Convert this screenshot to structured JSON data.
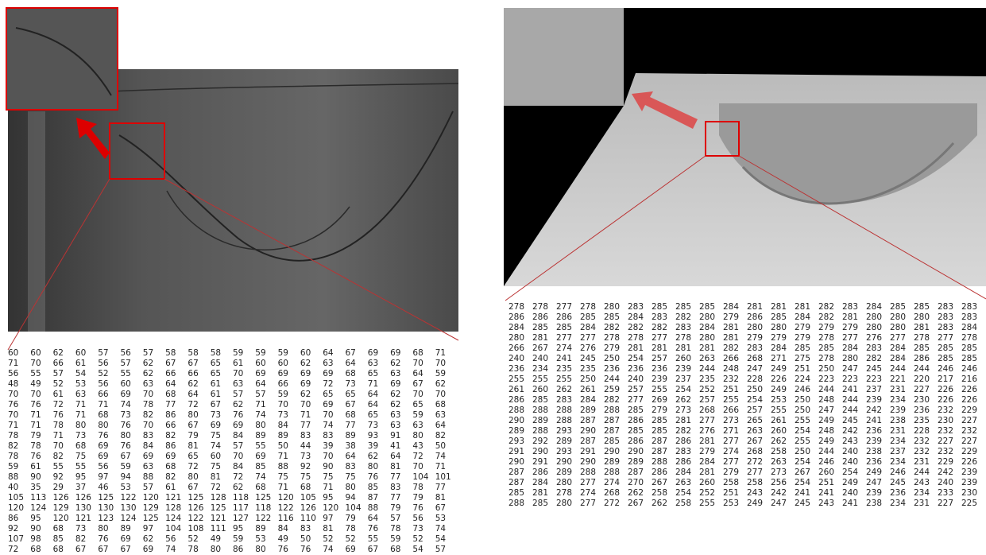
{
  "left_matrix": {
    "rows": [
      [
        60,
        60,
        62,
        60,
        57,
        56,
        57,
        58,
        58,
        58,
        59,
        59,
        59,
        60,
        64,
        67,
        69,
        69,
        68,
        71
      ],
      [
        71,
        70,
        66,
        61,
        56,
        57,
        62,
        67,
        67,
        65,
        61,
        60,
        60,
        62,
        63,
        64,
        63,
        62,
        70,
        70
      ],
      [
        56,
        55,
        57,
        54,
        52,
        55,
        62,
        66,
        66,
        65,
        70,
        69,
        69,
        69,
        69,
        68,
        65,
        63,
        64,
        59
      ],
      [
        48,
        49,
        52,
        53,
        56,
        60,
        63,
        64,
        62,
        61,
        63,
        64,
        66,
        69,
        72,
        73,
        71,
        69,
        67,
        62
      ],
      [
        70,
        70,
        61,
        63,
        66,
        69,
        70,
        68,
        64,
        61,
        57,
        57,
        59,
        62,
        65,
        65,
        64,
        62,
        70,
        70
      ],
      [
        76,
        76,
        72,
        71,
        71,
        74,
        78,
        77,
        72,
        67,
        62,
        71,
        70,
        70,
        69,
        67,
        64,
        62,
        65,
        68
      ],
      [
        70,
        71,
        76,
        71,
        68,
        73,
        82,
        86,
        80,
        73,
        76,
        74,
        73,
        71,
        70,
        68,
        65,
        63,
        59,
        63
      ],
      [
        71,
        71,
        78,
        80,
        80,
        76,
        70,
        66,
        67,
        69,
        69,
        80,
        84,
        77,
        74,
        77,
        73,
        63,
        63,
        64
      ],
      [
        78,
        79,
        71,
        73,
        76,
        80,
        83,
        82,
        79,
        75,
        84,
        89,
        89,
        83,
        83,
        89,
        93,
        91,
        80,
        82
      ],
      [
        82,
        78,
        70,
        68,
        69,
        76,
        84,
        86,
        81,
        74,
        57,
        55,
        50,
        44,
        39,
        38,
        39,
        41,
        43,
        50
      ],
      [
        78,
        76,
        82,
        75,
        69,
        67,
        69,
        69,
        65,
        60,
        70,
        69,
        71,
        73,
        70,
        64,
        62,
        64,
        72,
        74
      ],
      [
        59,
        61,
        55,
        55,
        56,
        59,
        63,
        68,
        72,
        75,
        84,
        85,
        88,
        92,
        90,
        83,
        80,
        81,
        70,
        71
      ],
      [
        88,
        90,
        92,
        95,
        97,
        94,
        88,
        82,
        80,
        81,
        72,
        74,
        75,
        75,
        75,
        75,
        76,
        77,
        104,
        101
      ],
      [
        40,
        35,
        29,
        37,
        46,
        53,
        57,
        61,
        67,
        72,
        62,
        68,
        71,
        68,
        71,
        80,
        85,
        83,
        78,
        77
      ],
      [
        105,
        113,
        126,
        126,
        125,
        122,
        120,
        121,
        125,
        128,
        118,
        125,
        120,
        105,
        95,
        94,
        87,
        77,
        79,
        81
      ],
      [
        120,
        124,
        129,
        130,
        130,
        130,
        129,
        128,
        126,
        125,
        117,
        118,
        122,
        126,
        120,
        104,
        88,
        79,
        76,
        67
      ],
      [
        86,
        95,
        120,
        121,
        123,
        124,
        125,
        124,
        122,
        121,
        127,
        122,
        116,
        110,
        97,
        79,
        64,
        57,
        56,
        53
      ],
      [
        92,
        90,
        68,
        73,
        80,
        89,
        97,
        104,
        108,
        111,
        95,
        89,
        84,
        83,
        81,
        78,
        76,
        78,
        73,
        74
      ],
      [
        107,
        98,
        85,
        82,
        76,
        69,
        62,
        56,
        52,
        49,
        59,
        53,
        49,
        50,
        52,
        52,
        55,
        59,
        52,
        54
      ],
      [
        72,
        68,
        68,
        67,
        67,
        67,
        69,
        74,
        78,
        80,
        86,
        80,
        76,
        76,
        74,
        69,
        67,
        68,
        54,
        57
      ]
    ]
  },
  "right_matrix": {
    "rows": [
      [
        278,
        278,
        277,
        278,
        280,
        283,
        285,
        285,
        285,
        284,
        281,
        281,
        281,
        282,
        283,
        284,
        285,
        285,
        283,
        283
      ],
      [
        286,
        286,
        286,
        285,
        285,
        284,
        283,
        282,
        280,
        279,
        286,
        285,
        284,
        282,
        281,
        280,
        280,
        280,
        283,
        283
      ],
      [
        284,
        285,
        285,
        284,
        282,
        282,
        282,
        283,
        284,
        281,
        280,
        280,
        279,
        279,
        279,
        280,
        280,
        281,
        283,
        284
      ],
      [
        280,
        281,
        277,
        277,
        278,
        278,
        277,
        278,
        280,
        281,
        279,
        279,
        279,
        278,
        277,
        276,
        277,
        278,
        277,
        278
      ],
      [
        266,
        267,
        274,
        276,
        279,
        281,
        281,
        281,
        281,
        282,
        283,
        284,
        285,
        285,
        284,
        283,
        284,
        285,
        285,
        285
      ],
      [
        240,
        240,
        241,
        245,
        250,
        254,
        257,
        260,
        263,
        266,
        268,
        271,
        275,
        278,
        280,
        282,
        284,
        286,
        285,
        285
      ],
      [
        236,
        234,
        235,
        235,
        236,
        236,
        236,
        239,
        244,
        248,
        247,
        249,
        251,
        250,
        247,
        245,
        244,
        244,
        246,
        246
      ],
      [
        255,
        255,
        255,
        250,
        244,
        240,
        239,
        237,
        235,
        232,
        228,
        226,
        224,
        223,
        223,
        223,
        221,
        220,
        217,
        216
      ],
      [
        261,
        260,
        262,
        261,
        259,
        257,
        255,
        254,
        252,
        251,
        250,
        249,
        246,
        244,
        241,
        237,
        231,
        227,
        226,
        226
      ],
      [
        286,
        285,
        283,
        284,
        282,
        277,
        269,
        262,
        257,
        255,
        254,
        253,
        250,
        248,
        244,
        239,
        234,
        230,
        226,
        226
      ],
      [
        288,
        288,
        288,
        289,
        288,
        285,
        279,
        273,
        268,
        266,
        257,
        255,
        250,
        247,
        244,
        242,
        239,
        236,
        232,
        229
      ],
      [
        290,
        289,
        288,
        287,
        287,
        286,
        285,
        281,
        277,
        273,
        265,
        261,
        255,
        249,
        245,
        241,
        238,
        235,
        230,
        227
      ],
      [
        289,
        288,
        293,
        290,
        287,
        285,
        285,
        282,
        276,
        271,
        263,
        260,
        254,
        248,
        242,
        236,
        231,
        228,
        232,
        232
      ],
      [
        293,
        292,
        289,
        287,
        285,
        286,
        287,
        286,
        281,
        277,
        267,
        262,
        255,
        249,
        243,
        239,
        234,
        232,
        227,
        227
      ],
      [
        291,
        290,
        293,
        291,
        290,
        290,
        287,
        283,
        279,
        274,
        268,
        258,
        250,
        244,
        240,
        238,
        237,
        232,
        232,
        229
      ],
      [
        290,
        291,
        290,
        290,
        289,
        289,
        288,
        286,
        284,
        277,
        272,
        263,
        254,
        246,
        240,
        236,
        234,
        231,
        229,
        226
      ],
      [
        287,
        286,
        289,
        288,
        288,
        287,
        286,
        284,
        281,
        279,
        277,
        273,
        267,
        260,
        254,
        249,
        246,
        244,
        242,
        239
      ],
      [
        287,
        284,
        280,
        277,
        274,
        270,
        267,
        263,
        260,
        258,
        258,
        256,
        254,
        251,
        249,
        247,
        245,
        243,
        240,
        239
      ],
      [
        285,
        281,
        278,
        274,
        268,
        262,
        258,
        254,
        252,
        251,
        243,
        242,
        241,
        241,
        240,
        239,
        236,
        234,
        233,
        230
      ],
      [
        288,
        285,
        280,
        277,
        272,
        267,
        262,
        258,
        255,
        253,
        249,
        247,
        245,
        243,
        241,
        238,
        234,
        231,
        227,
        225
      ]
    ]
  }
}
